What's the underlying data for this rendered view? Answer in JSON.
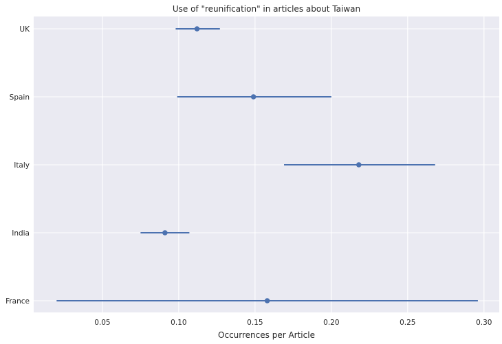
{
  "chart_data": {
    "type": "scatter",
    "title": "Use of \"reunification\" in articles about Taiwan",
    "xlabel": "Occurrences per Article",
    "ylabel": "",
    "xlim": [
      0.005,
      0.31
    ],
    "x_ticks": [
      "0.05",
      "0.10",
      "0.15",
      "0.20",
      "0.25",
      "0.30"
    ],
    "categories": [
      "UK",
      "Spain",
      "Italy",
      "India",
      "France"
    ],
    "series": [
      {
        "estimate": [
          0.112,
          0.149,
          0.218,
          0.091,
          0.158
        ],
        "lower": [
          0.098,
          0.099,
          0.169,
          0.075,
          0.02
        ],
        "upper": [
          0.127,
          0.2,
          0.268,
          0.107,
          0.296
        ]
      }
    ],
    "grid": true,
    "legend": "none",
    "colors": {
      "background": "#eaeaf2",
      "grid": "#ffffff",
      "point": "#4c72b0",
      "errorbar": "#4c72b0"
    }
  }
}
